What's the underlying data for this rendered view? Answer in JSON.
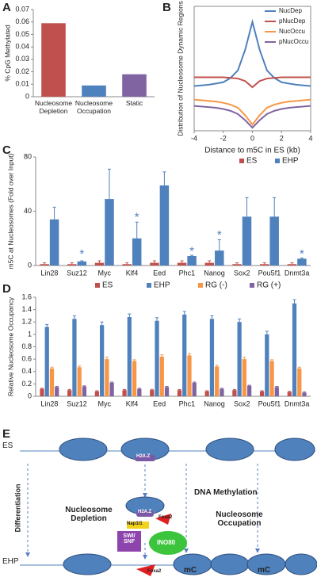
{
  "chart_data": [
    {
      "type": "bar",
      "panel_label": "A",
      "ylabel": "% CpG Methylated",
      "categories": [
        "Nucleosome Depletion",
        "Nucleosome Occupation",
        "Static"
      ],
      "values": [
        0.059,
        0.009,
        0.018
      ],
      "colors": [
        "#c0504d",
        "#4f81bd",
        "#8064a2"
      ],
      "ylim": [
        0,
        0.07
      ],
      "yticks": [
        0,
        0.01,
        0.02,
        0.03,
        0.04,
        0.05,
        0.06,
        0.07
      ]
    },
    {
      "type": "line",
      "panel_label": "B",
      "xlabel": "Distance to m5C in ES (kb)",
      "ylabel": "Distribution of Nucleosome Dynamic Regions",
      "x": [
        -4,
        -3.5,
        -3,
        -2.5,
        -2,
        -1.5,
        -1,
        -0.5,
        0,
        0.5,
        1,
        1.5,
        2,
        2.5,
        3,
        3.5,
        4
      ],
      "series": [
        {
          "name": "NucDep",
          "color": "#4f81bd",
          "values": [
            0.72,
            0.73,
            0.74,
            0.76,
            0.78,
            0.85,
            0.97,
            1.3,
            1.75,
            1.3,
            0.97,
            0.85,
            0.78,
            0.76,
            0.74,
            0.73,
            0.72
          ]
        },
        {
          "name": "pNucDep",
          "color": "#c0504d",
          "values": [
            0.86,
            0.86,
            0.86,
            0.86,
            0.86,
            0.85,
            0.84,
            0.8,
            0.7,
            0.8,
            0.84,
            0.85,
            0.86,
            0.86,
            0.86,
            0.86,
            0.86
          ]
        },
        {
          "name": "NucOccu",
          "color": "#f79646",
          "values": [
            0.5,
            0.49,
            0.48,
            0.47,
            0.45,
            0.42,
            0.37,
            0.25,
            0.1,
            0.25,
            0.37,
            0.42,
            0.45,
            0.47,
            0.48,
            0.49,
            0.5
          ]
        },
        {
          "name": "pNucOccu",
          "color": "#8064a2",
          "values": [
            0.4,
            0.39,
            0.38,
            0.37,
            0.35,
            0.32,
            0.27,
            0.17,
            0.05,
            0.17,
            0.27,
            0.32,
            0.35,
            0.37,
            0.38,
            0.39,
            0.4
          ]
        }
      ],
      "xlim": [
        -4,
        4
      ],
      "xticks": [
        -4,
        -2,
        0,
        2,
        4
      ],
      "ylim": [
        0,
        2
      ],
      "legend": "top-right"
    },
    {
      "type": "bar_error",
      "panel_label": "C",
      "ylabel": "m5C at Nucleosomes (Fold over Input)",
      "categories": [
        "Lin28",
        "Suz12",
        "Myc",
        "Klf4",
        "Eed",
        "Phc1",
        "Nanog",
        "Sox2",
        "Pou5f1",
        "Dnmt3a"
      ],
      "series": [
        {
          "name": "ES",
          "color": "#c0504d",
          "values": [
            1,
            1,
            2,
            1,
            2,
            2,
            2,
            1,
            1,
            1
          ],
          "errors": [
            1,
            1,
            1.5,
            1,
            1.5,
            1.5,
            1.5,
            1,
            1,
            1
          ]
        },
        {
          "name": "EHP",
          "color": "#4f81bd",
          "values": [
            34,
            3,
            49,
            20,
            59,
            7,
            11,
            36,
            36,
            5
          ],
          "errors": [
            9,
            0.5,
            22,
            12,
            10,
            0.5,
            8,
            14,
            14,
            0.5
          ]
        }
      ],
      "annotations": [
        {
          "text": "*",
          "x": "Suz12",
          "y": 10
        },
        {
          "text": "*",
          "x": "Klf4",
          "y": 37
        },
        {
          "text": "*",
          "x": "Phc1",
          "y": 12
        },
        {
          "text": "*",
          "x": "Nanog",
          "y": 24
        },
        {
          "text": "*",
          "x": "Dnmt3a",
          "y": 10
        }
      ],
      "ylim": [
        0,
        80
      ],
      "yticks": [
        0,
        40,
        80
      ],
      "legend": "top-right"
    },
    {
      "type": "bar_error",
      "panel_label": "D",
      "ylabel": "Relative Nucleosome Occupancy",
      "categories": [
        "Lin28",
        "Suz12",
        "Myc",
        "Klf4",
        "Eed",
        "Phc1",
        "Nanog",
        "Sox2",
        "Pou5f1",
        "Dnmt3a"
      ],
      "series": [
        {
          "name": "ES",
          "color": "#c0504d",
          "values": [
            0.12,
            0.1,
            0.08,
            0.1,
            0.1,
            0.1,
            0.08,
            0.1,
            0.08,
            0.07
          ],
          "errors": [
            0.01,
            0.01,
            0.01,
            0.01,
            0.01,
            0.01,
            0.01,
            0.01,
            0.01,
            0.01
          ]
        },
        {
          "name": "EHP",
          "color": "#4f81bd",
          "values": [
            1.12,
            1.25,
            1.15,
            1.28,
            1.22,
            1.32,
            1.25,
            1.2,
            1.0,
            1.5
          ],
          "errors": [
            0.04,
            0.05,
            0.05,
            0.05,
            0.05,
            0.05,
            0.05,
            0.05,
            0.05,
            0.06
          ]
        },
        {
          "name": "RG (-)",
          "color": "#f79646",
          "values": [
            0.45,
            0.47,
            0.6,
            0.57,
            0.64,
            0.66,
            0.48,
            0.6,
            0.57,
            0.45
          ],
          "errors": [
            0.02,
            0.02,
            0.03,
            0.02,
            0.03,
            0.03,
            0.02,
            0.03,
            0.02,
            0.02
          ]
        },
        {
          "name": "RG (+)",
          "color": "#8064a2",
          "values": [
            0.15,
            0.16,
            0.22,
            0.12,
            0.15,
            0.22,
            0.12,
            0.17,
            0.15,
            0.06
          ],
          "errors": [
            0.01,
            0.01,
            0.01,
            0.01,
            0.01,
            0.01,
            0.01,
            0.01,
            0.01,
            0.01
          ]
        }
      ],
      "ylim": [
        0,
        1.6
      ],
      "yticks": [
        0,
        0.2,
        0.4,
        0.6,
        0.8,
        1,
        1.2,
        1.4,
        1.6
      ],
      "legend": "top"
    }
  ],
  "diagram": {
    "panel_label": "E",
    "es": "ES",
    "ehp": "EHP",
    "differentiation": "Differentiation",
    "h2az_top": "H2A.Z",
    "h2az_mid": "H2A.Z",
    "depletion": "Nucleosome Depletion",
    "foxa2_mid": "Foxa2",
    "nap1l1": "Nap1l1",
    "swisnf": "SWI/ SNF",
    "ino80": "INO80",
    "dna_methylation": "DNA Methylation",
    "occupation": "Nucleosome Occupation",
    "foxa2_bottom": "Foxa2",
    "mc_1": "mC",
    "mc_2": "mC"
  }
}
